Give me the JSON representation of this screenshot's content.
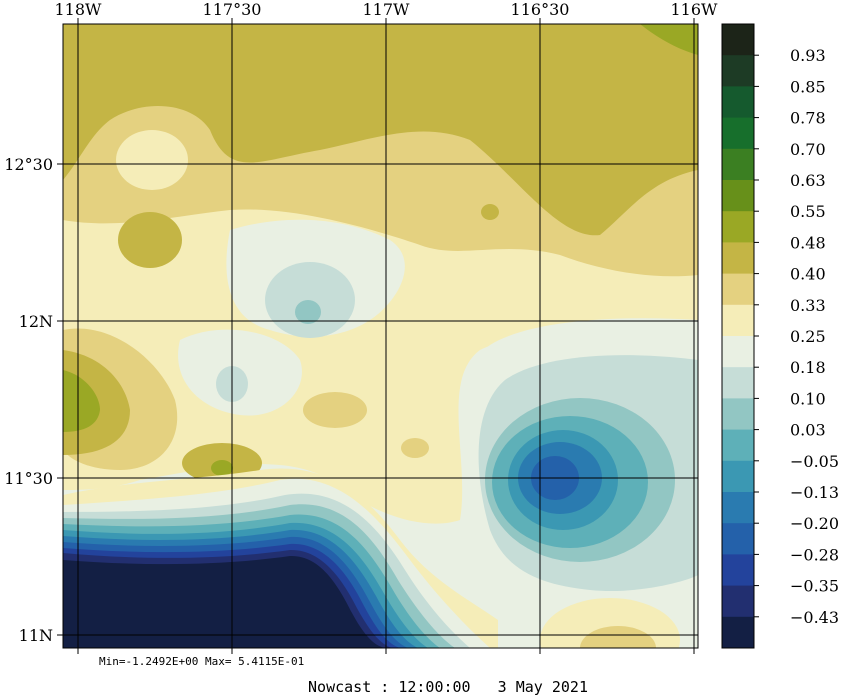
{
  "map": {
    "x_labels": [
      "118W",
      "117°30",
      "117W",
      "116°30",
      "116W"
    ],
    "y_labels": [
      "12°30",
      "12N",
      "11°30",
      "11N"
    ]
  },
  "colorbar": {
    "labels": [
      "0.93",
      "0.85",
      "0.78",
      "0.70",
      "0.63",
      "0.55",
      "0.48",
      "0.40",
      "0.33",
      "0.25",
      "0.18",
      "0.10",
      "0.03",
      "−0.05",
      "−0.13",
      "−0.20",
      "−0.28",
      "−0.35",
      "−0.43"
    ],
    "colors": [
      "#1c2418",
      "#1d3b25",
      "#155a2e",
      "#176f2c",
      "#3b7f22",
      "#67901a",
      "#9aa825",
      "#c4b545",
      "#e4d180",
      "#f5edb8",
      "#e9f0e3",
      "#c6ddd7",
      "#92c6c3",
      "#5eb0b8",
      "#3b98b3",
      "#2a7bb0",
      "#2461aa",
      "#23439c",
      "#222f70",
      "#131f44"
    ]
  },
  "stats": {
    "text": "Min=-1.2492E+00  Max= 5.4115E-01"
  },
  "footer": {
    "text": "Nowcast : 12:00:00   3 May 2021"
  }
}
